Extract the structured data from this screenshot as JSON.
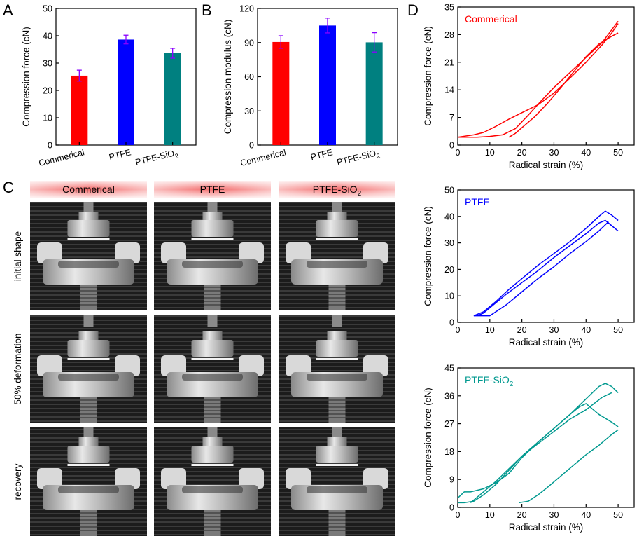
{
  "chart_data": [
    {
      "panel": "A",
      "type": "bar",
      "categories": [
        "Commerical",
        "PTFE",
        "PTFE-SiO2"
      ],
      "tick_labels": [
        {
          "main": "Commerical",
          "sub": ""
        },
        {
          "main": "PTFE",
          "sub": ""
        },
        {
          "main": "PTFE-SiO",
          "sub": "2"
        }
      ],
      "values": [
        25.4,
        38.6,
        33.6
      ],
      "errors": [
        2.0,
        1.6,
        1.8
      ],
      "colors": [
        "#ff0000",
        "#0000ff",
        "#008080"
      ],
      "error_color": "#8a00ff",
      "ylabel": "Compression force (cN)",
      "ylim": [
        0,
        50
      ],
      "yticks": [
        0,
        10,
        20,
        30,
        40,
        50
      ]
    },
    {
      "panel": "B",
      "type": "bar",
      "categories": [
        "Commerical",
        "PTFE",
        "PTFE-SiO2"
      ],
      "tick_labels": [
        {
          "main": "Commerical",
          "sub": ""
        },
        {
          "main": "PTFE",
          "sub": ""
        },
        {
          "main": "PTFE-SiO",
          "sub": "2"
        }
      ],
      "values": [
        90.5,
        105.0,
        90.2
      ],
      "errors": [
        5.5,
        6.5,
        8.5
      ],
      "colors": [
        "#ff0000",
        "#0000ff",
        "#008080"
      ],
      "error_color": "#8a00ff",
      "ylabel": "Compression modulus (cN)",
      "ylim": [
        0,
        120
      ],
      "yticks": [
        0,
        30,
        60,
        90,
        120
      ]
    },
    {
      "panel": "D",
      "type": "line",
      "series_name": {
        "main": "Commerical",
        "sub": ""
      },
      "color": "#ff0000",
      "xlabel": "Radical strain (%)",
      "ylabel": "Compression force (cN)",
      "xlim": [
        0,
        55
      ],
      "xticks": [
        0,
        10,
        20,
        30,
        40,
        50
      ],
      "ylim": [
        0,
        35
      ],
      "yticks": [
        0,
        7,
        14,
        21,
        28,
        35
      ],
      "curves": [
        {
          "x": [
            0,
            5,
            8,
            12,
            16,
            20,
            25,
            30,
            35,
            40,
            45,
            48,
            50
          ],
          "y": [
            2,
            2.6,
            3.2,
            4.8,
            6.6,
            8.2,
            10.2,
            13.2,
            17,
            21,
            25.4,
            28.4,
            30.8
          ]
        },
        {
          "x": [
            0,
            6,
            10,
            14,
            18,
            22,
            26,
            30,
            35,
            40,
            45,
            48,
            50
          ],
          "y": [
            2,
            2,
            2.2,
            2.6,
            4.2,
            7.6,
            11.2,
            14.6,
            18.4,
            22.2,
            26,
            29.2,
            31.4
          ]
        },
        {
          "x": [
            16,
            18,
            20,
            24,
            28,
            32,
            36,
            40,
            44,
            48,
            50
          ],
          "y": [
            2,
            3,
            4.4,
            7.2,
            10.6,
            14.4,
            18.4,
            22.4,
            25.6,
            27.6,
            28.4
          ]
        }
      ]
    },
    {
      "panel": "D",
      "type": "line",
      "series_name": {
        "main": "PTFE",
        "sub": ""
      },
      "color": "#0000ff",
      "xlabel": "Radical strain (%)",
      "ylabel": "Compression force (cN)",
      "xlim": [
        0,
        55
      ],
      "xticks": [
        0,
        10,
        20,
        30,
        40,
        50
      ],
      "ylim": [
        0,
        50
      ],
      "yticks": [
        0,
        10,
        20,
        30,
        40,
        50
      ],
      "curves": [
        {
          "x": [
            5,
            8,
            12,
            16,
            20,
            25,
            30,
            35,
            40,
            44,
            46,
            48,
            50
          ],
          "y": [
            2.5,
            4,
            8,
            12.5,
            16.5,
            21.5,
            26,
            30.5,
            35.5,
            40,
            42,
            40.5,
            38.5
          ]
        },
        {
          "x": [
            6,
            8,
            11,
            15,
            20,
            25,
            30,
            35,
            40,
            44,
            46,
            48,
            50
          ],
          "y": [
            2.5,
            3.5,
            6.5,
            10.5,
            15,
            19.5,
            24.5,
            29,
            33.5,
            37.5,
            38.5,
            36.5,
            34.5
          ]
        },
        {
          "x": [
            5,
            8,
            10,
            15,
            20,
            25,
            30,
            35,
            40,
            44,
            47
          ],
          "y": [
            2.5,
            2.5,
            2.5,
            6.5,
            11.5,
            16.5,
            21,
            26,
            30.5,
            34.5,
            38
          ]
        }
      ]
    },
    {
      "panel": "D",
      "type": "line",
      "series_name": {
        "main": "PTFE-SiO",
        "sub": "2"
      },
      "color": "#00998f",
      "xlabel": "Radical strain (%)",
      "ylabel": "Compression force (cN)",
      "xlim": [
        0,
        55
      ],
      "xticks": [
        0,
        10,
        20,
        30,
        40,
        50
      ],
      "ylim": [
        0,
        45
      ],
      "yticks": [
        0,
        9,
        18,
        27,
        36,
        45
      ],
      "curves": [
        {
          "x": [
            0,
            2,
            4,
            8,
            12,
            16,
            20,
            25,
            30,
            35,
            40,
            44,
            46,
            48,
            50
          ],
          "y": [
            3,
            5,
            5,
            6,
            8,
            11,
            16,
            21,
            25.5,
            30,
            35,
            39,
            40,
            39,
            37
          ]
        },
        {
          "x": [
            0,
            2,
            5,
            8,
            12,
            16,
            20,
            25,
            30,
            35,
            38,
            40,
            44,
            48,
            50
          ],
          "y": [
            1.5,
            1.5,
            2,
            4,
            7.5,
            12,
            16.5,
            21,
            25.5,
            30,
            32.5,
            33.5,
            30,
            27.5,
            26
          ]
        },
        {
          "x": [
            4,
            8,
            12,
            16,
            20,
            25,
            30,
            35,
            40,
            45,
            48
          ],
          "y": [
            1.5,
            5,
            8.5,
            12.5,
            16.5,
            20.5,
            24.5,
            28.5,
            31.5,
            35.5,
            37
          ]
        },
        {
          "x": [
            19,
            22,
            25,
            28,
            32,
            36,
            40,
            44,
            48,
            50
          ],
          "y": [
            1.5,
            2,
            4,
            6.5,
            10,
            13.5,
            17,
            20,
            23.5,
            25
          ]
        }
      ]
    }
  ],
  "panel_letters": [
    "A",
    "B",
    "C",
    "D"
  ],
  "photo_panel": {
    "columns": [
      {
        "main": "Commerical",
        "sub": ""
      },
      {
        "main": "PTFE",
        "sub": ""
      },
      {
        "main": "PTFE-SiO",
        "sub": "2"
      }
    ],
    "rows": [
      "initial shape",
      "50% deformation",
      "recovery"
    ]
  }
}
